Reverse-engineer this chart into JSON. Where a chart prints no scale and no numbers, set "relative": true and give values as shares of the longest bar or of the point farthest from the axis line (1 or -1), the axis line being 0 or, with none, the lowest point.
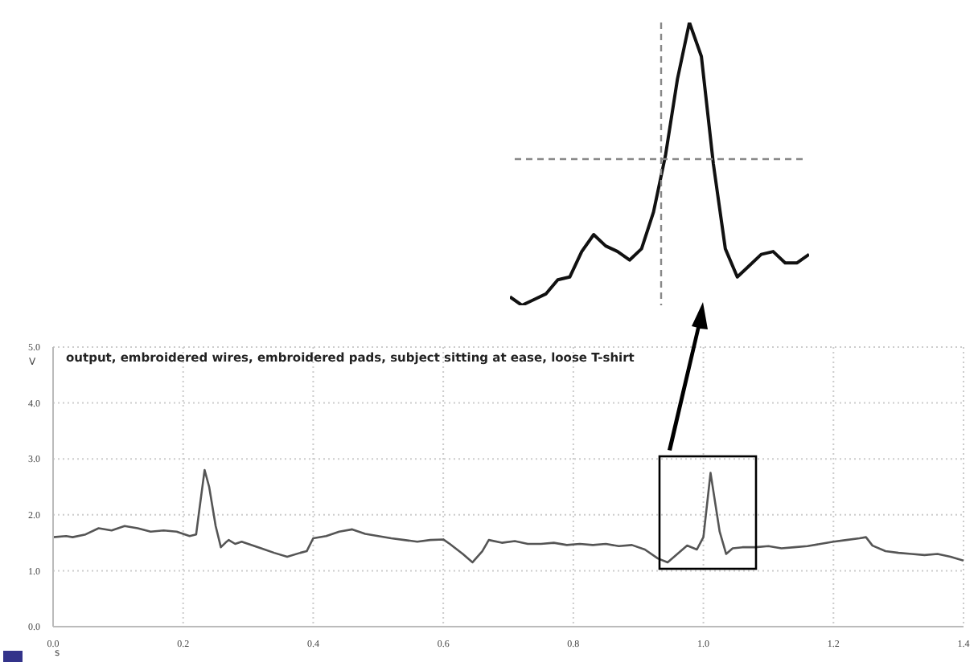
{
  "chart_data": [
    {
      "type": "line",
      "title": "output, embroidered wires, embroidered pads, subject sitting at ease, loose T-shirt",
      "xlabel": "s",
      "ylabel": "V",
      "grid": true,
      "legend": false,
      "marker": "none",
      "line_style": "solid",
      "xlim": [
        0,
        1.4
      ],
      "xticks": [
        {
          "value": 0,
          "label": "0.0"
        },
        0.2,
        0.4,
        0.6,
        0.8,
        {
          "value": 1,
          "label": "1.0"
        },
        1.2,
        1.4
      ],
      "ylim": [
        0,
        5
      ],
      "yticks": [
        {
          "value": 0,
          "label": "0.0"
        },
        {
          "value": 1,
          "label": "1.0"
        },
        {
          "value": 2,
          "label": "2.0"
        },
        {
          "value": 3,
          "label": "3.0"
        },
        {
          "value": 4,
          "label": "4.0"
        },
        {
          "value": 5,
          "label": "5.0"
        }
      ],
      "x": [
        0,
        0.02,
        0.03,
        0.05,
        0.07,
        0.09,
        0.11,
        0.13,
        0.15,
        0.17,
        0.19,
        0.21,
        0.22,
        0.225,
        0.233,
        0.24,
        0.25,
        0.258,
        0.265,
        0.27,
        0.28,
        0.29,
        0.3,
        0.32,
        0.34,
        0.36,
        0.38,
        0.39,
        0.4,
        0.42,
        0.44,
        0.46,
        0.48,
        0.5,
        0.52,
        0.54,
        0.56,
        0.58,
        0.6,
        0.61,
        0.63,
        0.645,
        0.66,
        0.67,
        0.69,
        0.71,
        0.73,
        0.75,
        0.77,
        0.79,
        0.81,
        0.83,
        0.85,
        0.87,
        0.89,
        0.91,
        0.93,
        0.945,
        0.96,
        0.975,
        0.99,
        1,
        1.011,
        1.025,
        1.035,
        1.045,
        1.06,
        1.08,
        1.1,
        1.12,
        1.14,
        1.16,
        1.18,
        1.2,
        1.22,
        1.24,
        1.25,
        1.26,
        1.28,
        1.3,
        1.32,
        1.34,
        1.36,
        1.38,
        1.4
      ],
      "series": [
        {
          "color": "#555555",
          "values": [
            1.6,
            1.62,
            1.6,
            1.65,
            1.76,
            1.72,
            1.8,
            1.76,
            1.7,
            1.72,
            1.7,
            1.62,
            1.65,
            2.1,
            2.8,
            2.5,
            1.8,
            1.42,
            1.5,
            1.55,
            1.48,
            1.52,
            1.48,
            1.4,
            1.32,
            1.25,
            1.32,
            1.35,
            1.58,
            1.62,
            1.7,
            1.74,
            1.66,
            1.62,
            1.58,
            1.55,
            1.52,
            1.55,
            1.56,
            1.48,
            1.3,
            1.15,
            1.35,
            1.55,
            1.5,
            1.53,
            1.48,
            1.48,
            1.5,
            1.46,
            1.48,
            1.46,
            1.48,
            1.44,
            1.46,
            1.38,
            1.22,
            1.15,
            1.3,
            1.45,
            1.38,
            1.6,
            2.75,
            1.7,
            1.3,
            1.4,
            1.42,
            1.42,
            1.44,
            1.4,
            1.42,
            1.44,
            1.48,
            1.52,
            1.55,
            1.58,
            1.6,
            1.45,
            1.35,
            1.32,
            1.3,
            1.28,
            1.3,
            1.25,
            1.18
          ]
        }
      ]
    },
    {
      "type": "line",
      "relative": true,
      "tick_labels": false,
      "grid": false,
      "legend": false,
      "marker": "none",
      "line_style": "solid",
      "categories": [
        null,
        null,
        null,
        null,
        null,
        null,
        null,
        null,
        null,
        null,
        null,
        null,
        null,
        null,
        null,
        null,
        null,
        null,
        null,
        null,
        null,
        null,
        null,
        null,
        null,
        null
      ],
      "series": [
        {
          "color": "#111111",
          "values": [
            0.03,
            0,
            0.02,
            0.04,
            0.09,
            0.1,
            0.19,
            0.25,
            0.21,
            0.19,
            0.16,
            0.2,
            0.33,
            0.53,
            0.8,
            1,
            0.88,
            0.5,
            0.2,
            0.1,
            0.14,
            0.18,
            0.19,
            0.15,
            0.15,
            0.18
          ]
        }
      ]
    }
  ]
}
